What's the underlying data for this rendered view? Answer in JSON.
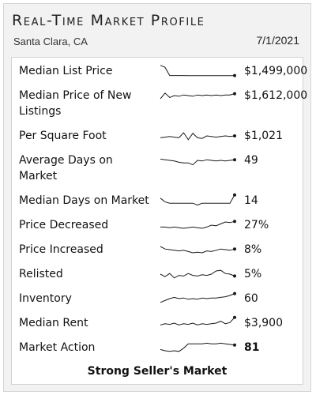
{
  "header": {
    "title": "Real-Time Market Profile",
    "location": "Santa Clara, CA",
    "date": "7/1/2021"
  },
  "metrics": [
    {
      "label": "Median List Price",
      "value": "$1,499,000",
      "bold": false,
      "trend": [
        0.95,
        0.8,
        0.15,
        0.15,
        0.15,
        0.15,
        0.14,
        0.14,
        0.14,
        0.14,
        0.14,
        0.14,
        0.14,
        0.14,
        0.14,
        0.14,
        0.15
      ]
    },
    {
      "label": "Median Price of New Listings",
      "value": "$1,612,000",
      "bold": false,
      "trend": [
        0.25,
        0.7,
        0.35,
        0.5,
        0.45,
        0.55,
        0.5,
        0.45,
        0.55,
        0.5,
        0.55,
        0.5,
        0.55,
        0.5,
        0.55,
        0.55,
        0.65
      ]
    },
    {
      "label": "Per Square Foot",
      "value": "$1,021",
      "bold": false,
      "trend": [
        0.35,
        0.4,
        0.45,
        0.4,
        0.35,
        0.75,
        0.2,
        0.7,
        0.35,
        0.3,
        0.5,
        0.45,
        0.4,
        0.45,
        0.5,
        0.45,
        0.5
      ]
    },
    {
      "label": "Average Days on Market",
      "value": "49",
      "bold": false,
      "trend": [
        0.6,
        0.55,
        0.5,
        0.45,
        0.35,
        0.3,
        0.3,
        0.15,
        0.5,
        0.45,
        0.55,
        0.5,
        0.45,
        0.5,
        0.45,
        0.5,
        0.55
      ]
    },
    {
      "label": "Median Days on Market",
      "value": "14",
      "bold": false,
      "trend": [
        0.7,
        0.4,
        0.3,
        0.3,
        0.3,
        0.3,
        0.3,
        0.3,
        0.15,
        0.3,
        0.3,
        0.3,
        0.3,
        0.3,
        0.3,
        0.3,
        0.95
      ]
    },
    {
      "label": "Price Decreased",
      "value": "27%",
      "bold": false,
      "trend": [
        0.35,
        0.35,
        0.3,
        0.35,
        0.3,
        0.25,
        0.3,
        0.35,
        0.3,
        0.25,
        0.35,
        0.5,
        0.45,
        0.6,
        0.75,
        0.7,
        0.8
      ]
    },
    {
      "label": "Price Increased",
      "value": "8%",
      "bold": false,
      "trend": [
        0.75,
        0.55,
        0.5,
        0.45,
        0.4,
        0.45,
        0.35,
        0.25,
        0.3,
        0.25,
        0.4,
        0.35,
        0.45,
        0.55,
        0.5,
        0.45,
        0.55
      ]
    },
    {
      "label": "Relisted",
      "value": "5%",
      "bold": false,
      "trend": [
        0.5,
        0.3,
        0.55,
        0.2,
        0.4,
        0.35,
        0.55,
        0.4,
        0.35,
        0.45,
        0.4,
        0.5,
        0.75,
        0.8,
        0.55,
        0.5,
        0.35
      ]
    },
    {
      "label": "Inventory",
      "value": "60",
      "bold": false,
      "trend": [
        0.2,
        0.35,
        0.5,
        0.6,
        0.5,
        0.55,
        0.45,
        0.5,
        0.45,
        0.55,
        0.5,
        0.55,
        0.55,
        0.6,
        0.65,
        0.75,
        0.9
      ]
    },
    {
      "label": "Median Rent",
      "value": "$3,900",
      "bold": false,
      "trend": [
        0.35,
        0.45,
        0.4,
        0.5,
        0.35,
        0.45,
        0.4,
        0.5,
        0.35,
        0.45,
        0.4,
        0.45,
        0.5,
        0.65,
        0.45,
        0.55,
        0.95
      ]
    },
    {
      "label": "Market Action",
      "value": "81",
      "bold": true,
      "trend": [
        0.35,
        0.25,
        0.2,
        0.25,
        0.2,
        0.45,
        0.8,
        0.8,
        0.8,
        0.8,
        0.85,
        0.8,
        0.8,
        0.85,
        0.8,
        0.75,
        0.7
      ]
    }
  ],
  "footer": {
    "verdict": "Strong Seller's Market"
  },
  "colors": {
    "sparkline": "#1a1a1a",
    "card_bg": "#ffffff",
    "panel_bg": "#f2f2f2"
  }
}
